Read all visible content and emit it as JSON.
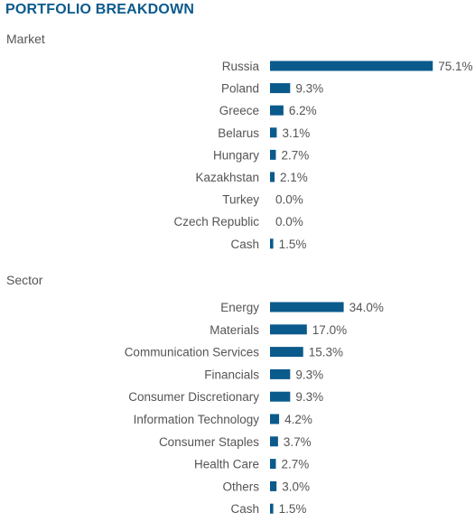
{
  "title": "PORTFOLIO BREAKDOWN",
  "colors": {
    "title": "#0b5a8c",
    "bar": "#0b5a8c",
    "text": "#555555"
  },
  "chart_data": [
    {
      "type": "bar",
      "orientation": "horizontal",
      "section_label": "Market",
      "categories": [
        "Russia",
        "Poland",
        "Greece",
        "Belarus",
        "Hungary",
        "Kazakhstan",
        "Turkey",
        "Czech Republic",
        "Cash"
      ],
      "values": [
        75.1,
        9.3,
        6.2,
        3.1,
        2.7,
        2.1,
        0.0,
        0.0,
        1.5
      ],
      "value_labels": [
        "75.1%",
        "9.3%",
        "6.2%",
        "3.1%",
        "2.7%",
        "2.1%",
        "0.0%",
        "0.0%",
        "1.5%"
      ]
    },
    {
      "type": "bar",
      "orientation": "horizontal",
      "section_label": "Sector",
      "categories": [
        "Energy",
        "Materials",
        "Communication Services",
        "Financials",
        "Consumer Discretionary",
        "Information Technology",
        "Consumer Staples",
        "Health Care",
        "Others",
        "Cash"
      ],
      "values": [
        34.0,
        17.0,
        15.3,
        9.3,
        9.3,
        4.2,
        3.7,
        2.7,
        3.0,
        1.5
      ],
      "value_labels": [
        "34.0%",
        "17.0%",
        "15.3%",
        "9.3%",
        "9.3%",
        "4.2%",
        "3.7%",
        "2.7%",
        "3.0%",
        "1.5%"
      ]
    }
  ]
}
